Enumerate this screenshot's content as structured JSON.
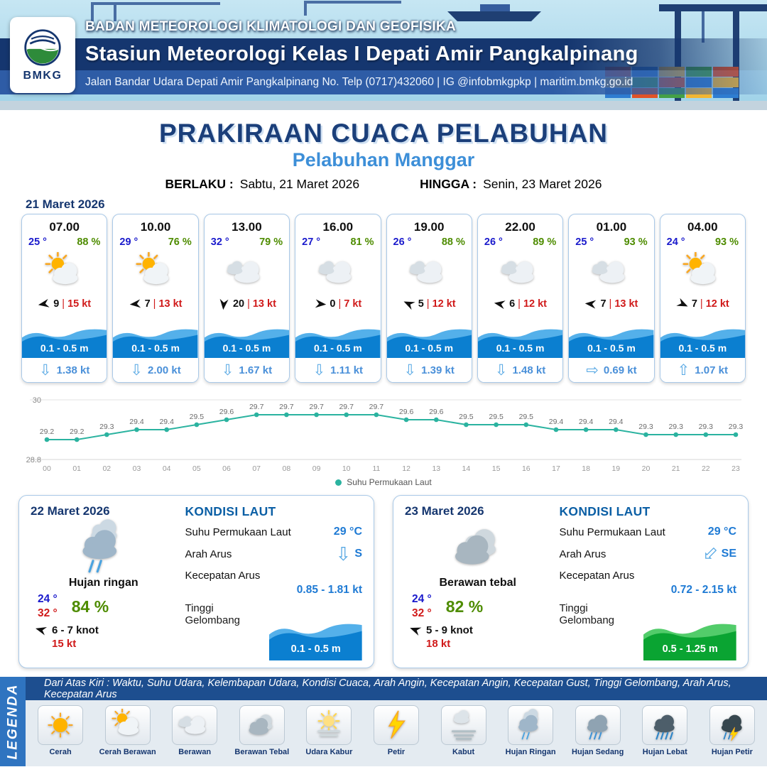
{
  "header": {
    "logo_label": "BMKG",
    "agency": "BADAN METEOROLOGI KLIMATOLOGI DAN GEOFISIKA",
    "station": "Stasiun Meteorologi Kelas I Depati Amir Pangkalpinang",
    "address": "Jalan Bandar Udara Depati Amir Pangkalpinang No. Telp (0717)432060 | IG @infobmkgpkp | maritim.bmkg.go.id"
  },
  "title": {
    "main": "PRAKIRAAN CUACA PELABUHAN",
    "subtitle": "Pelabuhan Manggar",
    "valid_label": "BERLAKU :",
    "valid_value": "Sabtu, 21 Maret 2026",
    "until_label": "HINGGA :",
    "until_value": "Senin, 23 Maret 2026"
  },
  "forecast": {
    "date": "21 Maret 2026",
    "wind_sep": "|",
    "cards": [
      {
        "time": "07.00",
        "temp": "25 °",
        "humidity": "88 %",
        "icon": "cloud-sun",
        "wind_deg": 170,
        "wind": "9",
        "gust": "15 kt",
        "wave": "0.1 - 0.5 m",
        "current_dir": "down",
        "current": "1.38 kt"
      },
      {
        "time": "10.00",
        "temp": "29 °",
        "humidity": "76 %",
        "icon": "cloud-sun",
        "wind_deg": 175,
        "wind": "7",
        "gust": "13 kt",
        "wave": "0.1 - 0.5 m",
        "current_dir": "down",
        "current": "2.00 kt"
      },
      {
        "time": "13.00",
        "temp": "32 °",
        "humidity": "79 %",
        "icon": "cloud",
        "wind_deg": 95,
        "wind": "20",
        "gust": "13 kt",
        "wave": "0.1 - 0.5 m",
        "current_dir": "down",
        "current": "1.67 kt"
      },
      {
        "time": "16.00",
        "temp": "27 °",
        "humidity": "81 %",
        "icon": "cloud",
        "wind_deg": 5,
        "wind": "0",
        "gust": "7 kt",
        "wave": "0.1 - 0.5 m",
        "current_dir": "down",
        "current": "1.11 kt"
      },
      {
        "time": "19.00",
        "temp": "26 °",
        "humidity": "88 %",
        "icon": "cloud",
        "wind_deg": 205,
        "wind": "5",
        "gust": "12 kt",
        "wave": "0.1 - 0.5 m",
        "current_dir": "down",
        "current": "1.39 kt"
      },
      {
        "time": "22.00",
        "temp": "26 °",
        "humidity": "89 %",
        "icon": "cloud",
        "wind_deg": 190,
        "wind": "6",
        "gust": "12 kt",
        "wave": "0.1 - 0.5 m",
        "current_dir": "down",
        "current": "1.48 kt"
      },
      {
        "time": "01.00",
        "temp": "25 °",
        "humidity": "93 %",
        "icon": "cloud",
        "wind_deg": 185,
        "wind": "7",
        "gust": "13 kt",
        "wave": "0.1 - 0.5 m",
        "current_dir": "right",
        "current": "0.69 kt"
      },
      {
        "time": "04.00",
        "temp": "24 °",
        "humidity": "93 %",
        "icon": "cloud-sun",
        "wind_deg": 25,
        "wind": "7",
        "gust": "12 kt",
        "wave": "0.1 - 0.5 m",
        "current_dir": "up",
        "current": "1.07 kt"
      }
    ]
  },
  "chart_data": {
    "type": "line",
    "title": "Suhu Permukaan Laut",
    "x": [
      "00",
      "01",
      "02",
      "03",
      "04",
      "05",
      "06",
      "07",
      "08",
      "09",
      "10",
      "11",
      "12",
      "13",
      "14",
      "15",
      "16",
      "17",
      "18",
      "19",
      "20",
      "21",
      "22",
      "23"
    ],
    "series": [
      {
        "name": "Suhu Permukaan Laut",
        "values": [
          29.2,
          29.2,
          29.3,
          29.4,
          29.4,
          29.5,
          29.6,
          29.7,
          29.7,
          29.7,
          29.7,
          29.7,
          29.6,
          29.6,
          29.5,
          29.5,
          29.5,
          29.4,
          29.4,
          29.4,
          29.3,
          29.3,
          29.3,
          29.3
        ]
      }
    ],
    "ylim": [
      28.8,
      30
    ],
    "line_color": "#2bb3a0",
    "legend_position": "bottom",
    "grid": true
  },
  "day_cards": [
    {
      "date": "22 Maret 2026",
      "icon": "rain-light",
      "condition": "Hujan ringan",
      "temp_min": "24 °",
      "temp_max": "32 °",
      "humidity": "84 %",
      "wind_deg": 195,
      "wind": "6 - 7 knot",
      "gust": "15 kt",
      "sea_title": "KONDISI LAUT",
      "sst_label": "Suhu Permukaan Laut",
      "sst": "29 °C",
      "dir_label": "Arah Arus",
      "dir": "S",
      "dir_rot": 0,
      "speed_label": "Kecepatan Arus",
      "speed": "0.85 - 1.81 kt",
      "wave_label": "Tinggi Gelombang",
      "wave": "0.1 - 0.5 m",
      "wave_color": "blue"
    },
    {
      "date": "23 Maret 2026",
      "icon": "cloud-thick",
      "condition": "Berawan tebal",
      "temp_min": "24 °",
      "temp_max": "32 °",
      "humidity": "82 %",
      "wind_deg": 200,
      "wind": "5 - 9 knot",
      "gust": "18 kt",
      "sea_title": "KONDISI LAUT",
      "sst_label": "Suhu Permukaan Laut",
      "sst": "29 °C",
      "dir_label": "Arah Arus",
      "dir": "SE",
      "dir_rot": 45,
      "speed_label": "Kecepatan Arus",
      "speed": "0.72 - 2.15 kt",
      "wave_label": "Tinggi Gelombang",
      "wave": "0.5 - 1.25 m",
      "wave_color": "green"
    }
  ],
  "legend": {
    "vertical_label": "LEGENDA",
    "note": "Dari Atas Kiri : Waktu, Suhu Udara, Kelembapan Udara, Kondisi Cuaca, Arah Angin, Kecepatan Angin, Kecepatan Gust, Tinggi Gelombang, Arah Arus, Kecepatan Arus",
    "items": [
      {
        "label": "Cerah",
        "icon": "sun"
      },
      {
        "label": "Cerah Berawan",
        "icon": "cloud-sun"
      },
      {
        "label": "Berawan",
        "icon": "cloud"
      },
      {
        "label": "Berawan Tebal",
        "icon": "cloud-thick"
      },
      {
        "label": "Udara Kabur",
        "icon": "hazy-sun"
      },
      {
        "label": "Petir",
        "icon": "lightning"
      },
      {
        "label": "Kabut",
        "icon": "fog"
      },
      {
        "label": "Hujan Ringan",
        "icon": "rain-light"
      },
      {
        "label": "Hujan Sedang",
        "icon": "rain-moderate"
      },
      {
        "label": "Hujan Lebat",
        "icon": "rain-heavy"
      },
      {
        "label": "Hujan Petir",
        "icon": "rain-thunder"
      }
    ]
  },
  "colors": {
    "navy": "#15366f",
    "band_blue": "#2e5ca6",
    "title_blue": "#1b3f7a",
    "subtitle_blue": "#3d8fd8",
    "temp_blue": "#1a1acc",
    "humidity_green": "#4e8c00",
    "gust_red": "#d01a1a",
    "current_blue": "#4a90d9",
    "chart_teal": "#2bb3a0",
    "wave": {
      "blue": {
        "main": "#0b7fd0",
        "light": "#54b0ea"
      },
      "green": {
        "main": "#0aa432",
        "light": "#52cc6a"
      }
    }
  }
}
